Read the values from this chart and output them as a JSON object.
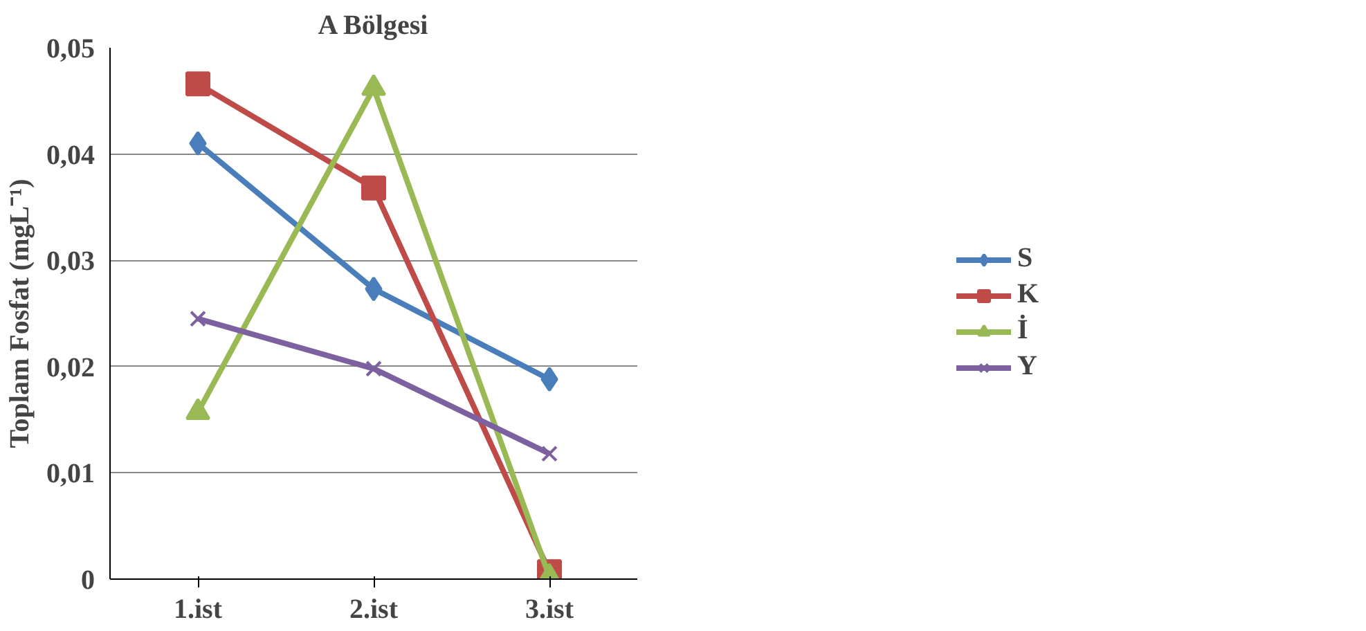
{
  "chart_data": {
    "type": "line",
    "title": "A Bölgesi",
    "ylabel": "Toplam Fosfat (mgL⁻¹)",
    "categories": [
      "1.ist",
      "2.ist",
      "3.ist"
    ],
    "series": [
      {
        "name": "S",
        "color": "#4a7ebb",
        "marker": "diamond",
        "values": [
          0.041,
          0.0273,
          0.0188
        ]
      },
      {
        "name": "K",
        "color": "#be4b48",
        "marker": "square",
        "values": [
          0.0466,
          0.0368,
          0.0007
        ]
      },
      {
        "name": "İ",
        "color": "#98b954",
        "marker": "triangle",
        "values": [
          0.0157,
          0.0462,
          0.0002
        ]
      },
      {
        "name": "Y",
        "color": "#7d60a0",
        "marker": "cross",
        "values": [
          0.0245,
          0.0198,
          0.0118
        ]
      }
    ],
    "ylim": [
      0,
      0.05
    ],
    "yticks": [
      {
        "value": 0,
        "label": "0"
      },
      {
        "value": 0.01,
        "label": "0,01"
      },
      {
        "value": 0.02,
        "label": "0,02"
      },
      {
        "value": 0.03,
        "label": "0,03"
      },
      {
        "value": 0.04,
        "label": "0,04"
      },
      {
        "value": 0.05,
        "label": "0,05"
      }
    ],
    "grid": "y",
    "legend": "right",
    "line_style": "solid"
  }
}
